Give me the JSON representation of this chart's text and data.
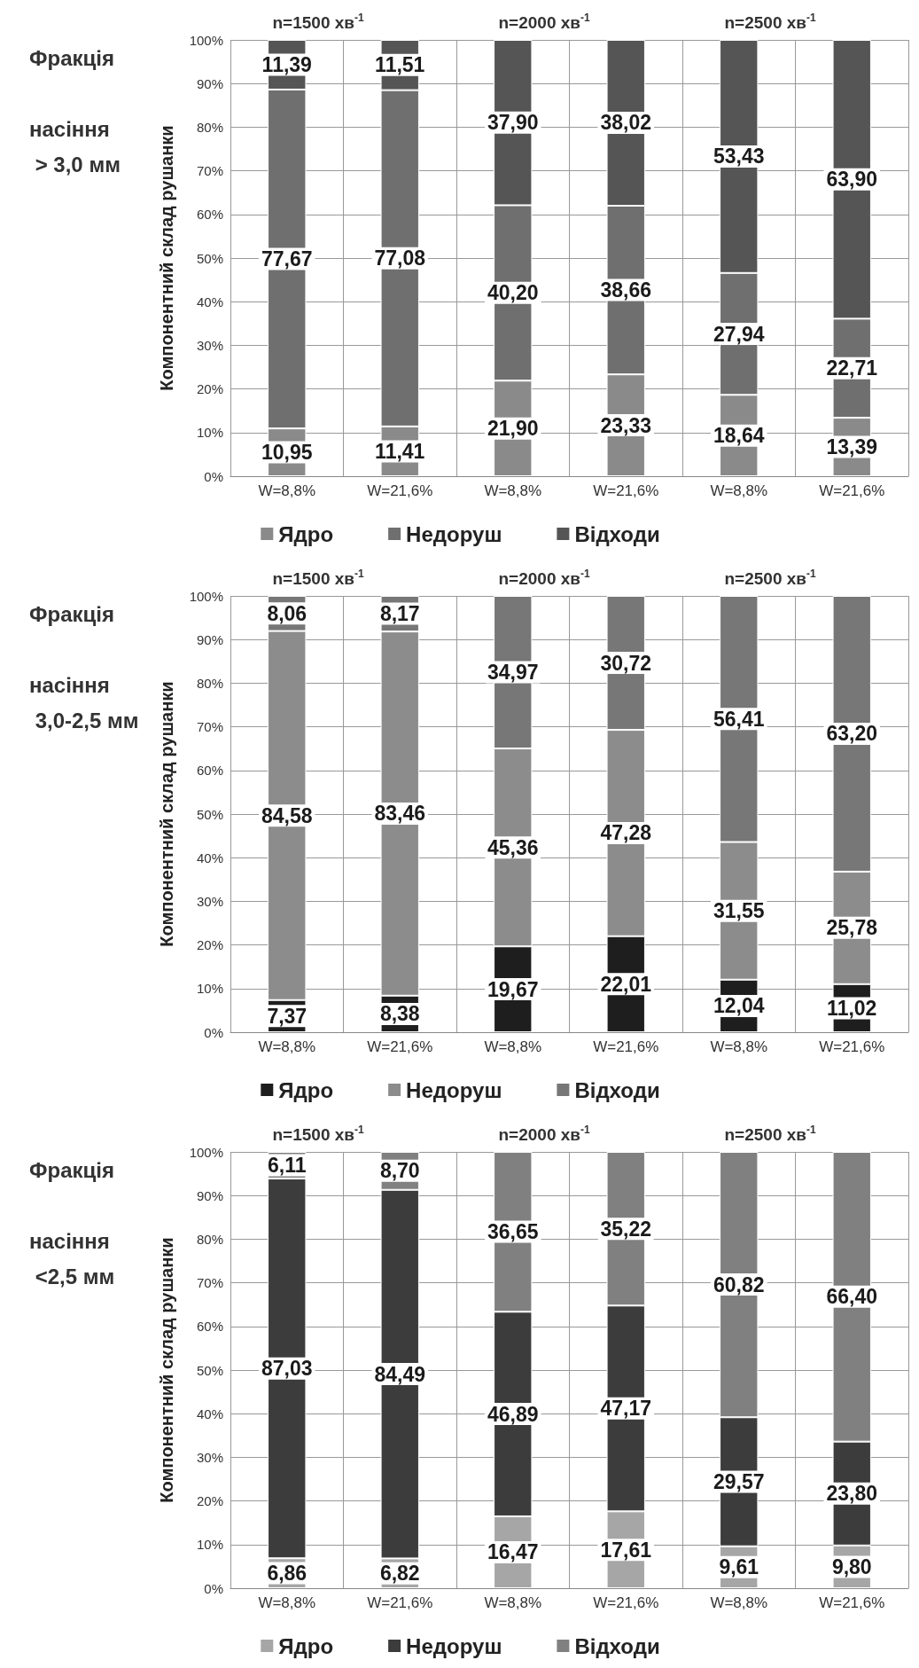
{
  "chart_data": [
    {
      "type": "bar",
      "stacked": true,
      "title": "Фракція насіння > 3,0 мм",
      "ylabel": "Компонентний склад рушанки",
      "categories": [
        "W=8,8%",
        "W=21,6%",
        "W=8,8%",
        "W=21,6%",
        "W=8,8%",
        "W=21,6%"
      ],
      "series": [
        {
          "name": "Ядро",
          "color": "#8a8a8a",
          "values": [
            10.95,
            11.41,
            21.9,
            23.33,
            18.64,
            13.39
          ],
          "value_labels": [
            "10,95",
            "11,41",
            "21,90",
            "23,33",
            "18,64",
            "13,39"
          ]
        },
        {
          "name": "Недоруш",
          "color": "#6f6f6f",
          "values": [
            77.67,
            77.08,
            40.2,
            38.66,
            27.94,
            22.71
          ],
          "value_labels": [
            "77,67",
            "77,08",
            "40,20",
            "38,66",
            "27,94",
            "22,71"
          ]
        },
        {
          "name": "Відходи",
          "color": "#555555",
          "values": [
            11.39,
            11.51,
            37.9,
            38.02,
            53.43,
            63.9
          ],
          "value_labels": [
            "11,39",
            "11,51",
            "37,90",
            "38,02",
            "53,43",
            "63,90"
          ]
        }
      ],
      "ylim": [
        0,
        100
      ],
      "yticks": [
        {
          "value": 0,
          "label": "0%"
        },
        {
          "value": 10,
          "label": "10%"
        },
        {
          "value": 20,
          "label": "20%"
        },
        {
          "value": 30,
          "label": "30%"
        },
        {
          "value": 40,
          "label": "40%"
        },
        {
          "value": 50,
          "label": "50%"
        },
        {
          "value": 60,
          "label": "60%"
        },
        {
          "value": 70,
          "label": "70%"
        },
        {
          "value": 80,
          "label": "80%"
        },
        {
          "value": 90,
          "label": "90%"
        },
        {
          "value": 100,
          "label": "100%"
        }
      ],
      "grid": true,
      "legend": "bottom",
      "annotations": [
        "n=1500 хв$^{-1}$",
        "n=2000 хв$^{-1}$",
        "n=2500 хв$^{-1}$"
      ]
    },
    {
      "type": "bar",
      "stacked": true,
      "title": "Фракція насіння 3,0-2,5 мм",
      "ylabel": "Компонентний склад рушанки",
      "categories": [
        "W=8,8%",
        "W=21,6%",
        "W=8,8%",
        "W=21,6%",
        "W=8,8%",
        "W=21,6%"
      ],
      "series": [
        {
          "name": "Ядро",
          "color": "#1e1e1e",
          "values": [
            7.37,
            8.38,
            19.67,
            22.01,
            12.04,
            11.02
          ],
          "value_labels": [
            "7,37",
            "8,38",
            "19,67",
            "22,01",
            "12,04",
            "11,02"
          ]
        },
        {
          "name": "Недоруш",
          "color": "#8c8c8c",
          "values": [
            84.58,
            83.46,
            45.36,
            47.28,
            31.55,
            25.78
          ],
          "value_labels": [
            "84,58",
            "83,46",
            "45,36",
            "47,28",
            "31,55",
            "25,78"
          ]
        },
        {
          "name": "Відходи",
          "color": "#777777",
          "values": [
            8.06,
            8.17,
            34.97,
            30.72,
            56.41,
            63.2
          ],
          "value_labels": [
            "8,06",
            "8,17",
            "34,97",
            "30,72",
            "56,41",
            "63,20"
          ]
        }
      ],
      "ylim": [
        0,
        100
      ],
      "yticks": [
        {
          "value": 0,
          "label": "0%"
        },
        {
          "value": 10,
          "label": "10%"
        },
        {
          "value": 20,
          "label": "20%"
        },
        {
          "value": 30,
          "label": "30%"
        },
        {
          "value": 40,
          "label": "40%"
        },
        {
          "value": 50,
          "label": "50%"
        },
        {
          "value": 60,
          "label": "60%"
        },
        {
          "value": 70,
          "label": "70%"
        },
        {
          "value": 80,
          "label": "80%"
        },
        {
          "value": 90,
          "label": "90%"
        },
        {
          "value": 100,
          "label": "100%"
        }
      ],
      "grid": true,
      "legend": "bottom",
      "annotations": [
        "n=1500 хв$^{-1}$",
        "n=2000 хв$^{-1}$",
        "n=2500 хв$^{-1}$"
      ]
    },
    {
      "type": "bar",
      "stacked": true,
      "title": "Фракція насіння <2,5 мм",
      "ylabel": "Компонентний склад рушанки",
      "categories": [
        "W=8,8%",
        "W=21,6%",
        "W=8,8%",
        "W=21,6%",
        "W=8,8%",
        "W=21,6%"
      ],
      "series": [
        {
          "name": "Ядро",
          "color": "#a6a6a6",
          "values": [
            6.86,
            6.82,
            16.47,
            17.61,
            9.61,
            9.8
          ],
          "value_labels": [
            "6,86",
            "6,82",
            "16,47",
            "17,61",
            "9,61",
            "9,80"
          ]
        },
        {
          "name": "Недоруш",
          "color": "#3c3c3c",
          "values": [
            87.03,
            84.49,
            46.89,
            47.17,
            29.57,
            23.8
          ],
          "value_labels": [
            "87,03",
            "84,49",
            "46,89",
            "47,17",
            "29,57",
            "23,80"
          ]
        },
        {
          "name": "Відходи",
          "color": "#808080",
          "values": [
            6.11,
            8.7,
            36.65,
            35.22,
            60.82,
            66.4
          ],
          "value_labels": [
            "6,11",
            "8,70",
            "36,65",
            "35,22",
            "60,82",
            "66,40"
          ]
        }
      ],
      "ylim": [
        0,
        100
      ],
      "yticks": [
        {
          "value": 0,
          "label": "0%"
        },
        {
          "value": 10,
          "label": "10%"
        },
        {
          "value": 20,
          "label": "20%"
        },
        {
          "value": 30,
          "label": "30%"
        },
        {
          "value": 40,
          "label": "40%"
        },
        {
          "value": 50,
          "label": "50%"
        },
        {
          "value": 60,
          "label": "60%"
        },
        {
          "value": 70,
          "label": "70%"
        },
        {
          "value": 80,
          "label": "80%"
        },
        {
          "value": 90,
          "label": "90%"
        },
        {
          "value": 100,
          "label": "100%"
        }
      ],
      "grid": true,
      "legend": "bottom",
      "annotations": [
        "n=1500 хв$^{-1}$",
        "n=2000 хв$^{-1}$",
        "n=2500 хв$^{-1}$"
      ]
    }
  ]
}
